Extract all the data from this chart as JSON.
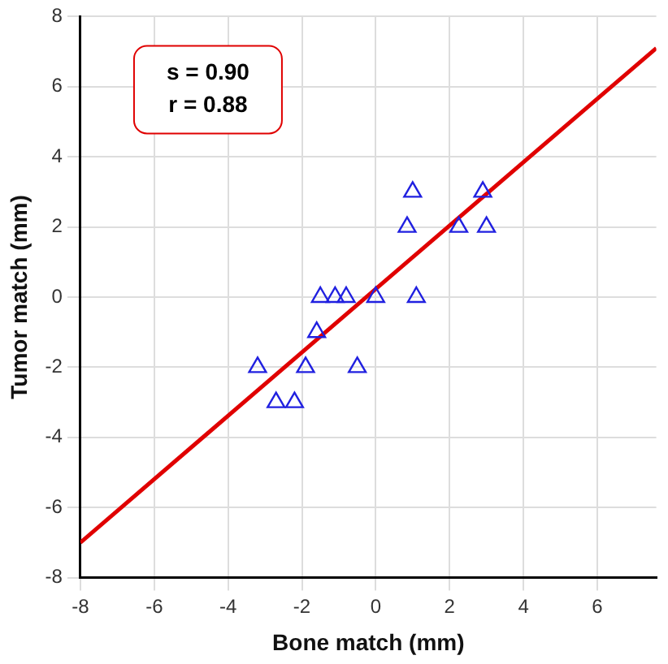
{
  "chart_data": {
    "type": "scatter",
    "xlabel": "Bone match (mm)",
    "ylabel": "Tumor match (mm)",
    "xlim": [
      -8,
      7.6
    ],
    "ylim": [
      -8,
      8
    ],
    "xticks": [
      -8,
      -6,
      -4,
      -2,
      0,
      2,
      4,
      6
    ],
    "yticks": [
      -8,
      -6,
      -4,
      -2,
      0,
      2,
      4,
      6,
      8
    ],
    "grid": true,
    "legend": false,
    "marker": "triangle",
    "annotations": [
      "s = 0.90",
      "r = 0.88"
    ],
    "series": [
      {
        "color": "#2020e0",
        "x": [
          -3.2,
          -2.7,
          -2.2,
          -1.9,
          -1.6,
          -1.5,
          -1.1,
          -0.8,
          -0.5,
          0,
          0.85,
          1.0,
          1.1,
          2.25,
          2.9,
          3.0
        ],
        "values": [
          -2,
          -3,
          -3,
          -2,
          -1,
          0,
          0,
          0,
          -2,
          0,
          2,
          3,
          0,
          2,
          3,
          2
        ]
      },
      {
        "type": "line",
        "color": "#e00000",
        "marker": "none",
        "x": [
          -8,
          7.6
        ],
        "values": [
          -7.0,
          7.1
        ]
      }
    ]
  }
}
